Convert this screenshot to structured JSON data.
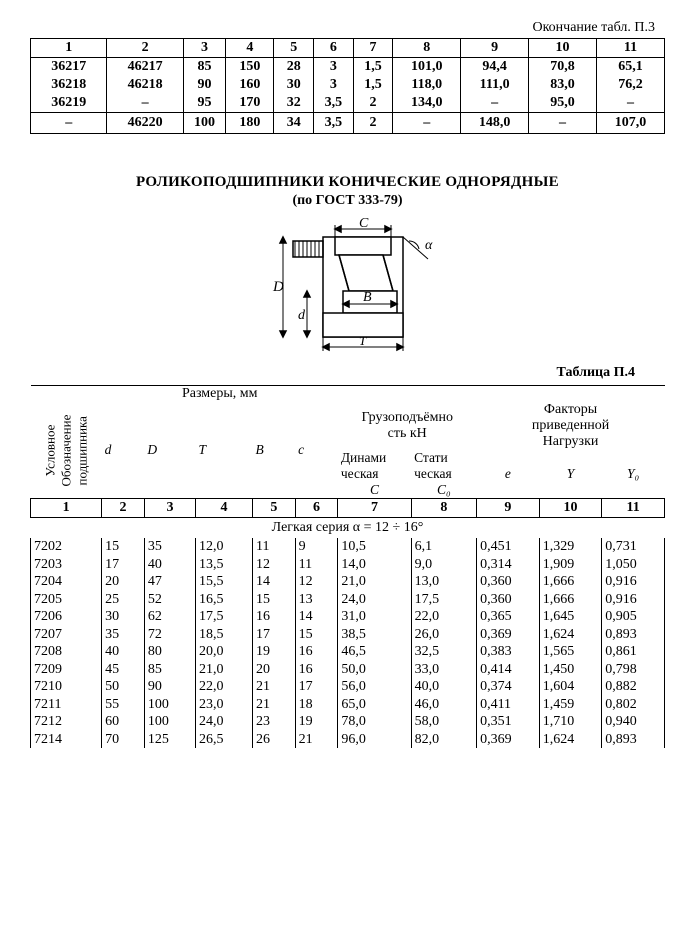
{
  "top": {
    "caption": "Окончание табл. П.3",
    "cols": [
      "1",
      "2",
      "3",
      "4",
      "5",
      "6",
      "7",
      "8",
      "9",
      "10",
      "11"
    ],
    "widths": [
      "54",
      "54",
      "30",
      "34",
      "28",
      "28",
      "28",
      "48",
      "48",
      "48",
      "48"
    ],
    "rows": [
      [
        "36217",
        "46217",
        "85",
        "150",
        "28",
        "3",
        "1,5",
        "101,0",
        "94,4",
        "70,8",
        "65,1"
      ],
      [
        "36218",
        "46218",
        "90",
        "160",
        "30",
        "3",
        "1,5",
        "118,0",
        "111,0",
        "83,0",
        "76,2"
      ],
      [
        "36219",
        "–",
        "95",
        "170",
        "32",
        "3,5",
        "2",
        "134,0",
        "–",
        "95,0",
        "–"
      ],
      [
        "–",
        "46220",
        "100",
        "180",
        "34",
        "3,5",
        "2",
        "–",
        "148,0",
        "–",
        "107,0"
      ]
    ]
  },
  "section": {
    "title": "РОЛИКОПОДШИПНИКИ КОНИЧЕСКИЕ ОДНОРЯДНЫЕ",
    "subtitle": "(по ГОСТ 333-79)"
  },
  "diagram": {
    "labels": {
      "C": "C",
      "alpha": "α",
      "D": "D",
      "d": "d",
      "B": "B",
      "T": "T"
    },
    "stroke": "#000000"
  },
  "tab2": {
    "label": "Таблица П.4",
    "header": {
      "dim_group": "Размеры, мм",
      "designation": "Условное\nОбозначение\nподшипника",
      "cols": [
        "d",
        "D",
        "T",
        "B",
        "c"
      ],
      "load_group": "Грузоподъёмно\nсть кН",
      "dyn": "Динами\nческая",
      "stat": "Стати\nческая",
      "C": "C",
      "C0": "C₀",
      "factors": "Факторы\nприведенной\nНагрузки",
      "e": "e",
      "Y": "Y",
      "Y0": "Y₀"
    },
    "numrow": [
      "1",
      "2",
      "3",
      "4",
      "5",
      "6",
      "7",
      "8",
      "9",
      "10",
      "11"
    ],
    "widths": [
      "50",
      "30",
      "36",
      "40",
      "30",
      "30",
      "46",
      "46",
      "44",
      "44",
      "44"
    ],
    "series_label": "Легкая серия α = 12 ÷ 16°",
    "rows": [
      [
        "7202",
        "15",
        "35",
        "12,0",
        "11",
        "9",
        "10,5",
        "6,1",
        "0,451",
        "1,329",
        "0,731"
      ],
      [
        "7203",
        "17",
        "40",
        "13,5",
        "12",
        "11",
        "14,0",
        "9,0",
        "0,314",
        "1,909",
        "1,050"
      ],
      [
        "7204",
        "20",
        "47",
        "15,5",
        "14",
        "12",
        "21,0",
        "13,0",
        "0,360",
        "1,666",
        "0,916"
      ],
      [
        "7205",
        "25",
        "52",
        "16,5",
        "15",
        "13",
        "24,0",
        "17,5",
        "0,360",
        "1,666",
        "0,916"
      ],
      [
        "7206",
        "30",
        "62",
        "17,5",
        "16",
        "14",
        "31,0",
        "22,0",
        "0,365",
        "1,645",
        "0,905"
      ],
      [
        "7207",
        "35",
        "72",
        "18,5",
        "17",
        "15",
        "38,5",
        "26,0",
        "0,369",
        "1,624",
        "0,893"
      ],
      [
        "7208",
        "40",
        "80",
        "20,0",
        "19",
        "16",
        "46,5",
        "32,5",
        "0,383",
        "1,565",
        "0,861"
      ],
      [
        "7209",
        "45",
        "85",
        "21,0",
        "20",
        "16",
        "50,0",
        "33,0",
        "0,414",
        "1,450",
        "0,798"
      ],
      [
        "7210",
        "50",
        "90",
        "22,0",
        "21",
        "17",
        "56,0",
        "40,0",
        "0,374",
        "1,604",
        "0,882"
      ],
      [
        "7211",
        "55",
        "100",
        "23,0",
        "21",
        "18",
        "65,0",
        "46,0",
        "0,411",
        "1,459",
        "0,802"
      ],
      [
        "7212",
        "60",
        "100",
        "24,0",
        "23",
        "19",
        "78,0",
        "58,0",
        "0,351",
        "1,710",
        "0,940"
      ],
      [
        "7214",
        "70",
        "125",
        "26,5",
        "26",
        "21",
        "96,0",
        "82,0",
        "0,369",
        "1,624",
        "0,893"
      ]
    ]
  }
}
